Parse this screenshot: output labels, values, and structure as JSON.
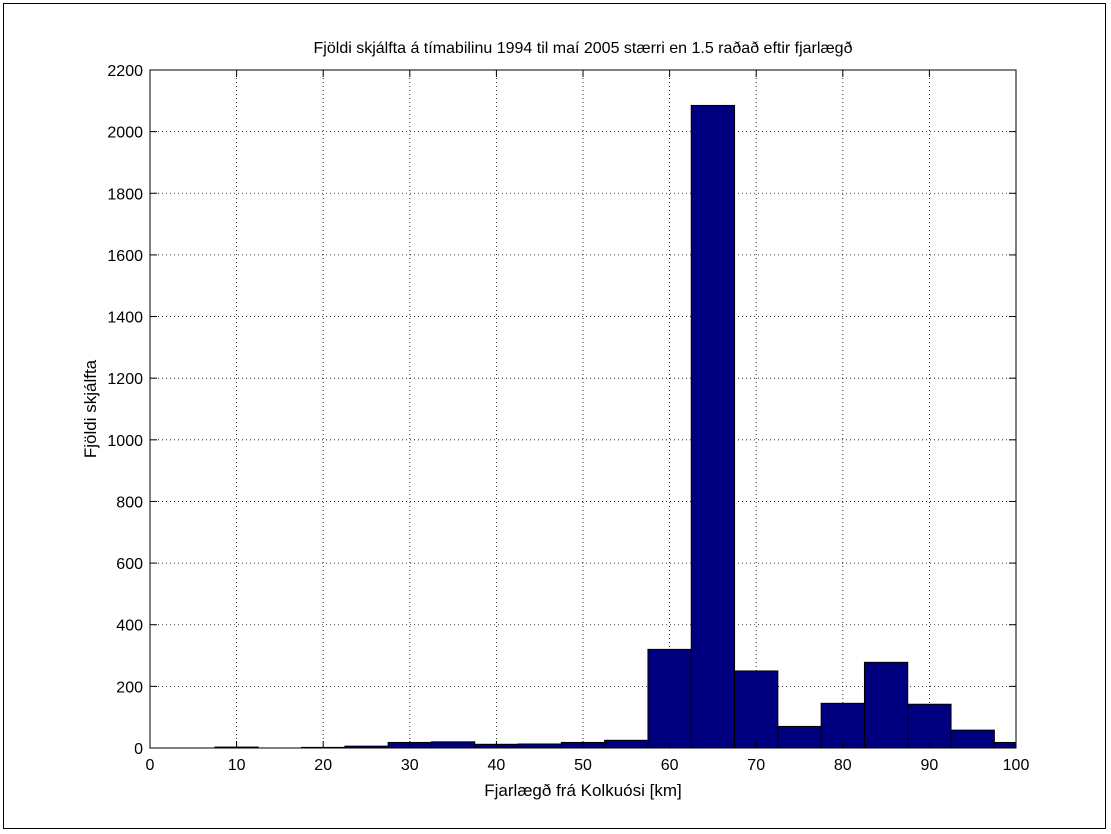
{
  "chart_data": {
    "type": "bar",
    "title": "Fjöldi skjálfta á tímabilinu 1994 til maí 2005 stærri en 1.5 raðað eftir fjarlægð",
    "xlabel": "Fjarlægð frá Kolkuósi [km]",
    "ylabel": "Fjöldi skjálfta",
    "xlim": [
      0,
      100
    ],
    "ylim": [
      0,
      2200
    ],
    "xticks": [
      0,
      10,
      20,
      30,
      40,
      50,
      60,
      70,
      80,
      90,
      100
    ],
    "yticks": [
      0,
      200,
      400,
      600,
      800,
      1000,
      1200,
      1400,
      1600,
      1800,
      2000,
      2200
    ],
    "grid": true,
    "bin_width": 5,
    "bin_centers": [
      10,
      20,
      25,
      30,
      35,
      40,
      45,
      50,
      55,
      60,
      65,
      70,
      75,
      80,
      85,
      90,
      95,
      100
    ],
    "values": [
      3,
      2,
      6,
      18,
      20,
      12,
      13,
      18,
      25,
      320,
      2085,
      250,
      70,
      145,
      278,
      142,
      58,
      18
    ],
    "bar_color": "#00007f",
    "bar_edge_color": "#000000"
  }
}
